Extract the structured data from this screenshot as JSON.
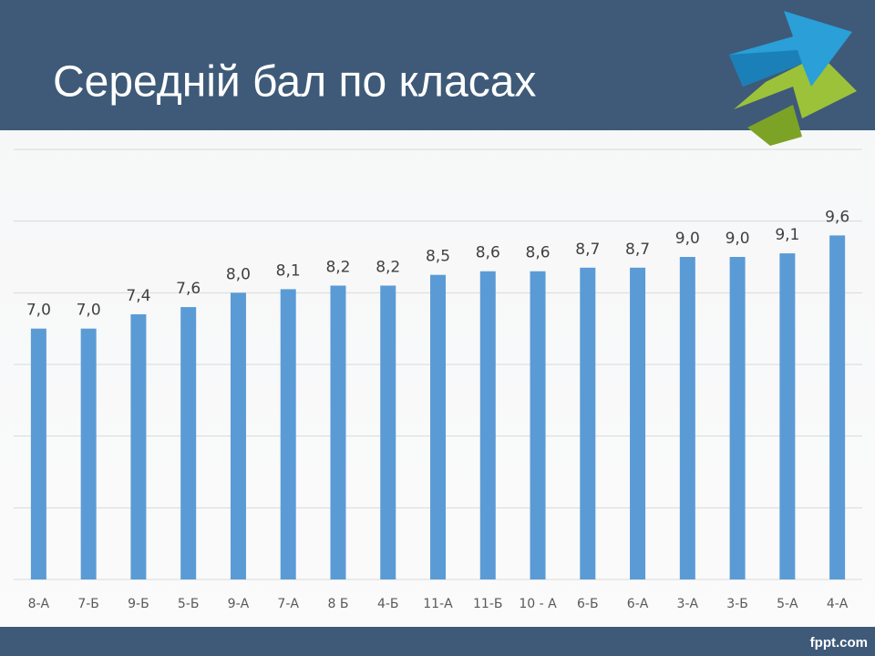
{
  "chart_data": {
    "type": "bar",
    "title": "Середній бал по класах",
    "categories": [
      "8-А",
      "7-Б",
      "9-Б",
      "5-Б",
      "9-А",
      "7-А",
      "8 Б",
      "4-Б",
      "11-А",
      "11-Б",
      "10 - А",
      "6-Б",
      "6-А",
      "3-А",
      "3-Б",
      "5-А",
      "4-А"
    ],
    "values": [
      7.0,
      7.0,
      7.4,
      7.6,
      8.0,
      8.1,
      8.2,
      8.2,
      8.5,
      8.6,
      8.6,
      8.7,
      8.7,
      9.0,
      9.0,
      9.1,
      9.6
    ],
    "value_labels": [
      "7,0",
      "7,0",
      "7,4",
      "7,6",
      "8,0",
      "8,1",
      "8,2",
      "8,2",
      "8,5",
      "8,6",
      "8,6",
      "8,7",
      "8,7",
      "9,0",
      "9,0",
      "9,1",
      "9,6"
    ],
    "color": "#5b9bd5",
    "ylim": [
      0,
      12
    ],
    "yticks": [
      0,
      2,
      4,
      6,
      8,
      10,
      12
    ],
    "grid": true
  },
  "footer": "fppt.com"
}
